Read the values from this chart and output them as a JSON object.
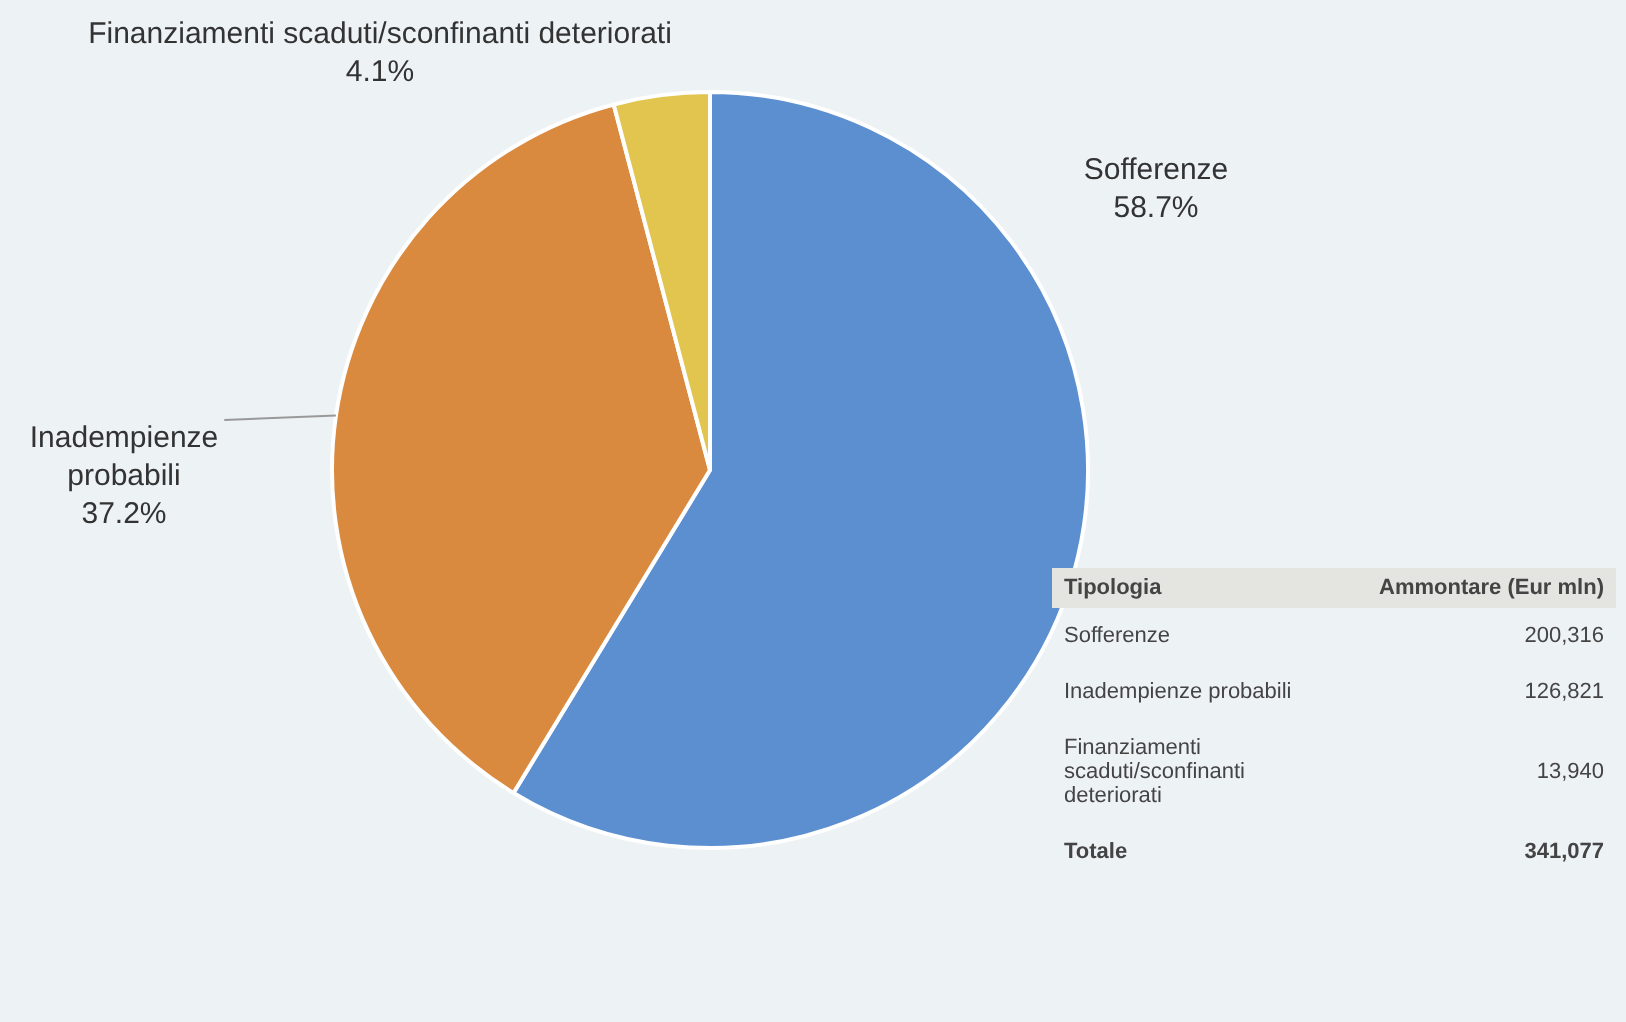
{
  "chart_data": {
    "type": "pie",
    "categories": [
      "Sofferenze",
      "Inadempienze probabili",
      "Finanziamenti scaduti/sconfinanti deteriorati"
    ],
    "values": [
      58.7,
      37.2,
      4.1
    ],
    "value_labels": [
      "58.7%",
      "37.2%",
      "4.1%"
    ],
    "colors": [
      "#5b8fd0",
      "#d98a3f",
      "#e2c54f"
    ],
    "totals": [
      "341,077"
    ],
    "annotations": [
      "Tipologia",
      "Ammontare (Eur mln)",
      "Totale",
      "200,316",
      "126,821",
      "13,940"
    ],
    "legend": false
  }
}
